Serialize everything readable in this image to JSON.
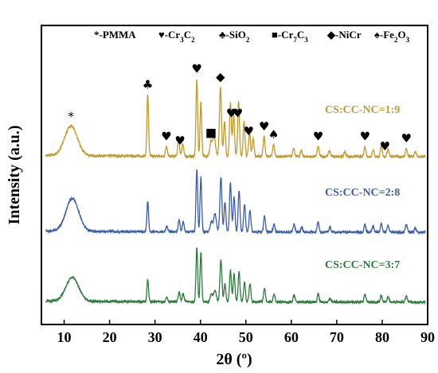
{
  "chart_data": {
    "type": "line",
    "title": "",
    "xlabel": "2θ (º)",
    "ylabel": "Intensity (a.u.)",
    "xlim": [
      5,
      90
    ],
    "xticks": [
      10,
      20,
      30,
      40,
      50,
      60,
      70,
      80,
      90
    ],
    "grid": false,
    "legend": [
      {
        "symbol": "*",
        "text": "-PMMA"
      },
      {
        "symbol": "♥",
        "text": "-Cr3C2"
      },
      {
        "symbol": "♣",
        "text": "-SiO2"
      },
      {
        "symbol": "■",
        "text": "-Cr7C3"
      },
      {
        "symbol": "◆",
        "text": "-NiCr"
      },
      {
        "symbol": "♠",
        "text": "-Fe2O3"
      }
    ],
    "series": [
      {
        "name": "CS:CC-NC=1:9",
        "color": "#c09a2c",
        "peaks": [
          {
            "x": 11.5,
            "h": 0.3,
            "w": 1.4
          },
          {
            "x": 28.4,
            "h": 0.62,
            "w": 0.18
          },
          {
            "x": 32.5,
            "h": 0.1,
            "w": 0.2
          },
          {
            "x": 35.2,
            "h": 0.17,
            "w": 0.2
          },
          {
            "x": 36.1,
            "h": 0.13,
            "w": 0.2
          },
          {
            "x": 39.2,
            "h": 0.78,
            "w": 0.18
          },
          {
            "x": 40.1,
            "h": 0.55,
            "w": 0.18
          },
          {
            "x": 42.3,
            "h": 0.14,
            "w": 0.25
          },
          {
            "x": 43.0,
            "h": 0.2,
            "w": 0.3
          },
          {
            "x": 44.4,
            "h": 0.7,
            "w": 0.22
          },
          {
            "x": 45.3,
            "h": 0.35,
            "w": 0.2
          },
          {
            "x": 46.6,
            "h": 0.55,
            "w": 0.2
          },
          {
            "x": 47.3,
            "h": 0.42,
            "w": 0.2
          },
          {
            "x": 48.4,
            "h": 0.55,
            "w": 0.2
          },
          {
            "x": 49.6,
            "h": 0.35,
            "w": 0.2
          },
          {
            "x": 50.8,
            "h": 0.25,
            "w": 0.2
          },
          {
            "x": 51.6,
            "h": 0.18,
            "w": 0.2
          },
          {
            "x": 54.0,
            "h": 0.2,
            "w": 0.2
          },
          {
            "x": 56.1,
            "h": 0.12,
            "w": 0.2
          },
          {
            "x": 60.5,
            "h": 0.09,
            "w": 0.2
          },
          {
            "x": 62.2,
            "h": 0.06,
            "w": 0.2
          },
          {
            "x": 65.9,
            "h": 0.1,
            "w": 0.2
          },
          {
            "x": 68.4,
            "h": 0.06,
            "w": 0.2
          },
          {
            "x": 71.8,
            "h": 0.05,
            "w": 0.2
          },
          {
            "x": 76.2,
            "h": 0.1,
            "w": 0.2
          },
          {
            "x": 78.0,
            "h": 0.07,
            "w": 0.2
          },
          {
            "x": 79.8,
            "h": 0.1,
            "w": 0.2
          },
          {
            "x": 81.3,
            "h": 0.08,
            "w": 0.2
          },
          {
            "x": 85.3,
            "h": 0.08,
            "w": 0.2
          },
          {
            "x": 87.3,
            "h": 0.05,
            "w": 0.2
          }
        ]
      },
      {
        "name": "CS:CC-NC=2:8",
        "color": "#3b5ea8",
        "peaks": [
          {
            "x": 11.8,
            "h": 0.33,
            "w": 1.4
          },
          {
            "x": 28.4,
            "h": 0.3,
            "w": 0.18
          },
          {
            "x": 32.6,
            "h": 0.06,
            "w": 0.2
          },
          {
            "x": 35.3,
            "h": 0.12,
            "w": 0.2
          },
          {
            "x": 36.2,
            "h": 0.1,
            "w": 0.2
          },
          {
            "x": 39.2,
            "h": 0.62,
            "w": 0.18
          },
          {
            "x": 40.1,
            "h": 0.55,
            "w": 0.18
          },
          {
            "x": 42.4,
            "h": 0.1,
            "w": 0.25
          },
          {
            "x": 43.2,
            "h": 0.18,
            "w": 0.3
          },
          {
            "x": 44.5,
            "h": 0.55,
            "w": 0.22
          },
          {
            "x": 45.4,
            "h": 0.3,
            "w": 0.2
          },
          {
            "x": 46.6,
            "h": 0.5,
            "w": 0.2
          },
          {
            "x": 47.4,
            "h": 0.35,
            "w": 0.2
          },
          {
            "x": 48.5,
            "h": 0.42,
            "w": 0.2
          },
          {
            "x": 49.7,
            "h": 0.28,
            "w": 0.2
          },
          {
            "x": 50.9,
            "h": 0.22,
            "w": 0.2
          },
          {
            "x": 54.1,
            "h": 0.16,
            "w": 0.2
          },
          {
            "x": 56.2,
            "h": 0.08,
            "w": 0.2
          },
          {
            "x": 60.6,
            "h": 0.08,
            "w": 0.2
          },
          {
            "x": 62.3,
            "h": 0.05,
            "w": 0.2
          },
          {
            "x": 65.9,
            "h": 0.1,
            "w": 0.2
          },
          {
            "x": 68.5,
            "h": 0.05,
            "w": 0.2
          },
          {
            "x": 76.2,
            "h": 0.08,
            "w": 0.2
          },
          {
            "x": 78.0,
            "h": 0.06,
            "w": 0.2
          },
          {
            "x": 79.8,
            "h": 0.09,
            "w": 0.2
          },
          {
            "x": 81.3,
            "h": 0.07,
            "w": 0.2
          },
          {
            "x": 85.3,
            "h": 0.08,
            "w": 0.2
          },
          {
            "x": 87.3,
            "h": 0.04,
            "w": 0.2
          }
        ]
      },
      {
        "name": "CS:CC-NC=3:7",
        "color": "#2f7a3d",
        "peaks": [
          {
            "x": 11.8,
            "h": 0.24,
            "w": 1.4
          },
          {
            "x": 28.4,
            "h": 0.22,
            "w": 0.18
          },
          {
            "x": 32.6,
            "h": 0.05,
            "w": 0.2
          },
          {
            "x": 35.3,
            "h": 0.1,
            "w": 0.2
          },
          {
            "x": 36.2,
            "h": 0.08,
            "w": 0.2
          },
          {
            "x": 39.2,
            "h": 0.55,
            "w": 0.18
          },
          {
            "x": 40.1,
            "h": 0.5,
            "w": 0.18
          },
          {
            "x": 42.4,
            "h": 0.08,
            "w": 0.25
          },
          {
            "x": 43.2,
            "h": 0.12,
            "w": 0.3
          },
          {
            "x": 44.5,
            "h": 0.42,
            "w": 0.22
          },
          {
            "x": 45.4,
            "h": 0.18,
            "w": 0.2
          },
          {
            "x": 46.6,
            "h": 0.32,
            "w": 0.2
          },
          {
            "x": 47.4,
            "h": 0.28,
            "w": 0.2
          },
          {
            "x": 48.5,
            "h": 0.3,
            "w": 0.2
          },
          {
            "x": 49.7,
            "h": 0.2,
            "w": 0.2
          },
          {
            "x": 50.9,
            "h": 0.18,
            "w": 0.2
          },
          {
            "x": 54.1,
            "h": 0.14,
            "w": 0.2
          },
          {
            "x": 56.2,
            "h": 0.08,
            "w": 0.2
          },
          {
            "x": 60.6,
            "h": 0.07,
            "w": 0.2
          },
          {
            "x": 65.9,
            "h": 0.08,
            "w": 0.2
          },
          {
            "x": 68.5,
            "h": 0.04,
            "w": 0.2
          },
          {
            "x": 76.2,
            "h": 0.08,
            "w": 0.2
          },
          {
            "x": 79.8,
            "h": 0.07,
            "w": 0.2
          },
          {
            "x": 81.3,
            "h": 0.06,
            "w": 0.2
          },
          {
            "x": 85.3,
            "h": 0.06,
            "w": 0.2
          }
        ]
      }
    ],
    "annotations": [
      {
        "symbol": "*",
        "x": 11.5
      },
      {
        "symbol": "♣",
        "x": 28.4
      },
      {
        "symbol": "♥",
        "x": 32.5
      },
      {
        "symbol": "♥",
        "x": 35.5
      },
      {
        "symbol": "♥",
        "x": 39.2
      },
      {
        "symbol": "■",
        "x": 42.3
      },
      {
        "symbol": "◆",
        "x": 44.4
      },
      {
        "symbol": "♥",
        "x": 46.8
      },
      {
        "symbol": "♥",
        "x": 48.2
      },
      {
        "symbol": "♥",
        "x": 50.6
      },
      {
        "symbol": "♥",
        "x": 54.0
      },
      {
        "symbol": "♠",
        "x": 56.1
      },
      {
        "symbol": "♥",
        "x": 65.9
      },
      {
        "symbol": "♥",
        "x": 76.2
      },
      {
        "symbol": "♥",
        "x": 80.6
      },
      {
        "symbol": "♥",
        "x": 85.3
      }
    ]
  }
}
